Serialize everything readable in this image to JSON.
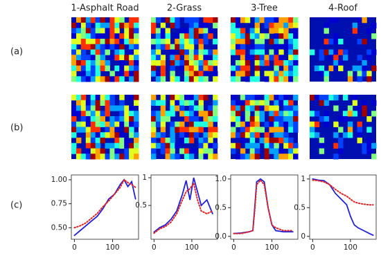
{
  "columns": [
    "1-Asphalt Road",
    "2-Grass",
    "3-Tree",
    "4-Roof"
  ],
  "rows": [
    "(a)",
    "(b)",
    "(c)"
  ],
  "chart_data": [
    {
      "type": "line",
      "xlim": [
        -8,
        168
      ],
      "xticks": [
        0,
        100
      ],
      "ylim": [
        0.38,
        1.05
      ],
      "yticks": [
        {
          "value": 0.5,
          "label": "0.50"
        },
        0.75,
        {
          "value": 1,
          "label": "1.00"
        }
      ],
      "x": [
        0,
        15,
        30,
        45,
        60,
        75,
        90,
        105,
        120,
        130,
        140,
        150,
        160
      ],
      "series": [
        {
          "color": "#1f1fe0",
          "style": "solid",
          "values": [
            0.42,
            0.47,
            0.52,
            0.57,
            0.62,
            0.7,
            0.8,
            0.85,
            0.95,
            1.0,
            0.93,
            0.98,
            0.8
          ]
        },
        {
          "color": "#e82020",
          "style": "dotted",
          "values": [
            0.5,
            0.52,
            0.55,
            0.6,
            0.65,
            0.72,
            0.78,
            0.85,
            0.92,
            1.0,
            0.97,
            0.95,
            0.92
          ]
        }
      ]
    },
    {
      "type": "line",
      "xlim": [
        -8,
        168
      ],
      "xticks": [
        0,
        100
      ],
      "ylim": [
        -0.11,
        1.05
      ],
      "yticks": [
        0.5,
        1
      ],
      "x": [
        0,
        15,
        30,
        45,
        60,
        75,
        85,
        95,
        105,
        115,
        125,
        140,
        155
      ],
      "series": [
        {
          "color": "#1f1fe0",
          "style": "solid",
          "values": [
            0.02,
            0.1,
            0.15,
            0.25,
            0.4,
            0.7,
            0.95,
            0.6,
            1.0,
            0.75,
            0.5,
            0.6,
            0.35
          ]
        },
        {
          "color": "#e82020",
          "style": "dotted",
          "values": [
            0.0,
            0.08,
            0.12,
            0.2,
            0.35,
            0.6,
            0.75,
            0.8,
            0.9,
            0.6,
            0.4,
            0.35,
            0.4
          ]
        }
      ]
    },
    {
      "type": "line",
      "xlim": [
        -8,
        168
      ],
      "xticks": [
        0,
        100
      ],
      "ylim": [
        -0.05,
        1.07
      ],
      "yticks": [
        {
          "value": 0,
          "label": "0.0"
        },
        0.5,
        {
          "value": 1,
          "label": "1.0"
        }
      ],
      "x": [
        0,
        20,
        40,
        50,
        55,
        60,
        70,
        80,
        90,
        100,
        110,
        130,
        155
      ],
      "series": [
        {
          "color": "#1f1fe0",
          "style": "solid",
          "values": [
            0.05,
            0.06,
            0.08,
            0.1,
            0.5,
            0.95,
            1.0,
            0.95,
            0.5,
            0.2,
            0.1,
            0.08,
            0.08
          ]
        },
        {
          "color": "#e82020",
          "style": "dotted",
          "values": [
            0.05,
            0.05,
            0.08,
            0.1,
            0.45,
            0.9,
            0.98,
            0.9,
            0.5,
            0.2,
            0.15,
            0.1,
            0.1
          ]
        }
      ]
    },
    {
      "type": "line",
      "xlim": [
        -8,
        168
      ],
      "xticks": [
        0,
        100
      ],
      "ylim": [
        -0.05,
        1.07
      ],
      "yticks": [
        0,
        0.5,
        1
      ],
      "x": [
        0,
        15,
        30,
        45,
        60,
        75,
        90,
        100,
        110,
        120,
        135,
        150,
        160
      ],
      "series": [
        {
          "color": "#1f1fe0",
          "style": "solid",
          "values": [
            1.0,
            0.98,
            0.97,
            0.9,
            0.75,
            0.65,
            0.55,
            0.35,
            0.2,
            0.15,
            0.1,
            0.05,
            0.02
          ]
        },
        {
          "color": "#e82020",
          "style": "dotted",
          "values": [
            0.98,
            0.97,
            0.95,
            0.9,
            0.82,
            0.75,
            0.7,
            0.65,
            0.6,
            0.58,
            0.56,
            0.55,
            0.55
          ]
        }
      ]
    }
  ]
}
